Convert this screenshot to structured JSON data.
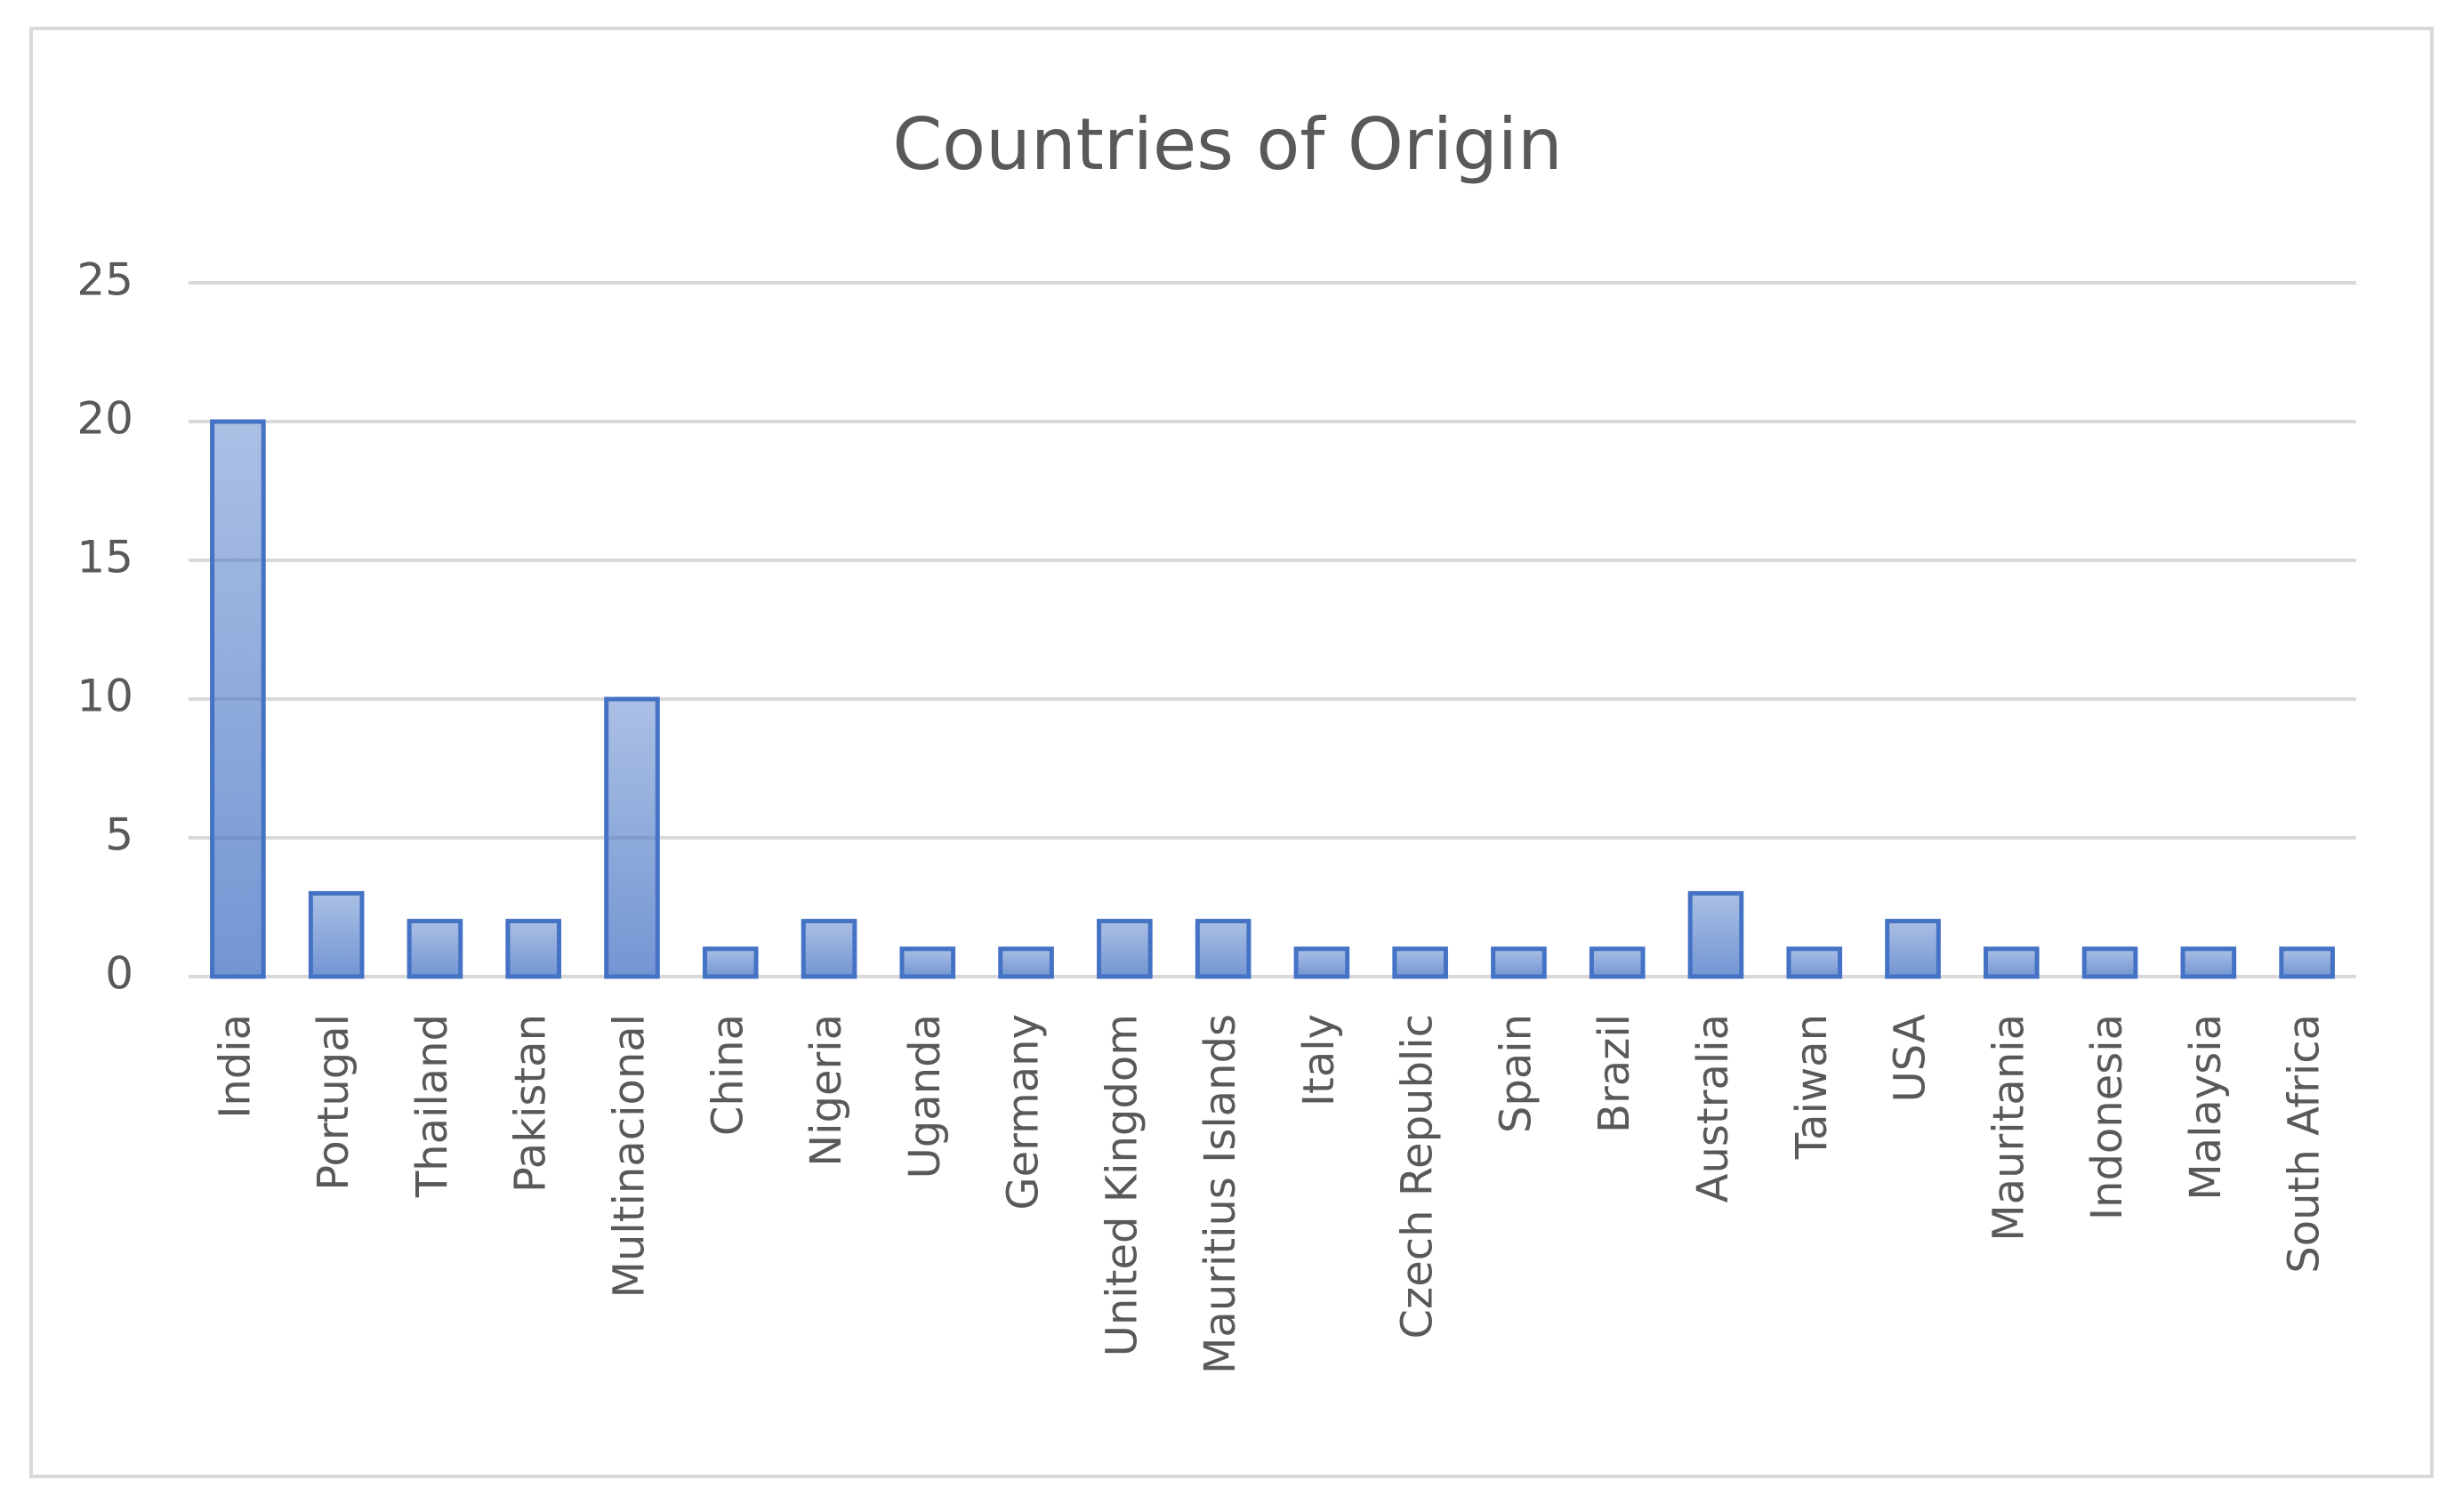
{
  "chart_data": {
    "type": "bar",
    "title": "Countries of Origin",
    "categories": [
      "India",
      "Portugal",
      "Thailand",
      "Pakistan",
      "Multinacional",
      "China",
      "Nigeria",
      "Uganda",
      "Germany",
      "United Kingdom",
      "Mauritius Islands",
      "Italy",
      "Czech Republic",
      "Spain",
      "Brazil",
      "Australia",
      "Taiwan",
      "USA",
      "Mauritania",
      "Indonesia",
      "Malaysia",
      "South Africa"
    ],
    "values": [
      20,
      3,
      2,
      2,
      10,
      1,
      2,
      1,
      1,
      2,
      2,
      1,
      1,
      1,
      1,
      3,
      1,
      2,
      1,
      1,
      1,
      1
    ],
    "color": "#4472c4",
    "ylim": [
      0,
      25
    ],
    "yticks": [
      0,
      5,
      10,
      15,
      20,
      25
    ],
    "grid": true
  }
}
